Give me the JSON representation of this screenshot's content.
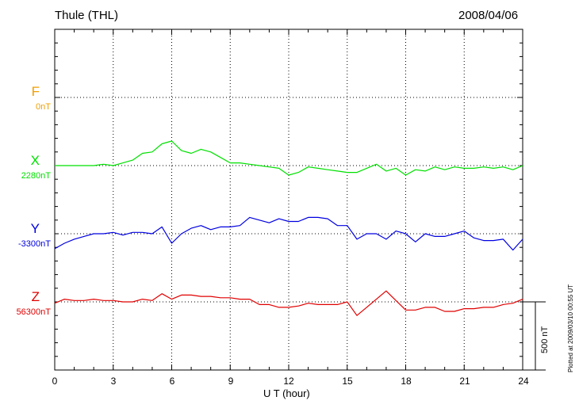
{
  "header": {
    "station": "Thule (THL)",
    "date": "2008/04/06"
  },
  "plot_note": "Plotted at 2009/03/10 00:55 UT",
  "scale_bar_label": "500 nT",
  "chart_data": {
    "type": "line",
    "xlabel": "U T (hour)",
    "xlim": [
      0,
      24
    ],
    "xticks": [
      "0",
      "3",
      "6",
      "9",
      "12",
      "15",
      "18",
      "21",
      "24"
    ],
    "ylabel": "",
    "scale_bar_nT": 500,
    "grid": true,
    "series": [
      {
        "name": "F",
        "baseline_label": "0nT",
        "color": "#f0a000",
        "x": [],
        "deviation_nT": []
      },
      {
        "name": "X",
        "baseline_label": "2280nT",
        "color": "#00e000",
        "x": [
          0,
          0.5,
          1,
          1.5,
          2,
          2.5,
          3,
          3.5,
          4,
          4.5,
          5,
          5.5,
          6,
          6.5,
          7,
          7.5,
          8,
          8.5,
          9,
          9.5,
          10,
          10.5,
          11,
          11.5,
          12,
          12.5,
          13,
          13.5,
          14,
          14.5,
          15,
          15.5,
          16,
          16.5,
          17,
          17.5,
          18,
          18.5,
          19,
          19.5,
          20,
          20.5,
          21,
          21.5,
          22,
          22.5,
          23,
          23.5,
          24
        ],
        "deviation_nT": [
          0,
          0,
          0,
          0,
          0,
          10,
          0,
          20,
          40,
          90,
          100,
          160,
          180,
          110,
          90,
          120,
          100,
          60,
          20,
          20,
          10,
          0,
          -10,
          -20,
          -70,
          -50,
          -10,
          -20,
          -30,
          -40,
          -50,
          -50,
          -20,
          10,
          -40,
          -20,
          -70,
          -30,
          -40,
          -10,
          -30,
          -10,
          -20,
          -20,
          -10,
          -20,
          -10,
          -30,
          0
        ]
      },
      {
        "name": "Y",
        "baseline_label": "-3300nT",
        "color": "#0000e0",
        "x": [
          0,
          0.5,
          1,
          1.5,
          2,
          2.5,
          3,
          3.5,
          4,
          4.5,
          5,
          5.5,
          6,
          6.5,
          7,
          7.5,
          8,
          8.5,
          9,
          9.5,
          10,
          10.5,
          11,
          11.5,
          12,
          12.5,
          13,
          13.5,
          14,
          14.5,
          15,
          15.5,
          16,
          16.5,
          17,
          17.5,
          18,
          18.5,
          19,
          19.5,
          20,
          20.5,
          21,
          21.5,
          22,
          22.5,
          23,
          23.5,
          24
        ],
        "deviation_nT": [
          -110,
          -70,
          -40,
          -20,
          0,
          0,
          10,
          -10,
          10,
          10,
          0,
          50,
          -70,
          0,
          40,
          60,
          30,
          50,
          50,
          60,
          120,
          100,
          80,
          110,
          90,
          90,
          120,
          120,
          110,
          60,
          60,
          -40,
          0,
          0,
          -40,
          20,
          0,
          -60,
          0,
          -20,
          -20,
          0,
          20,
          -30,
          -50,
          -50,
          -40,
          -120,
          -40
        ]
      },
      {
        "name": "Z",
        "baseline_label": "56300nT",
        "color": "#e00000",
        "x": [
          0,
          0.5,
          1,
          1.5,
          2,
          2.5,
          3,
          3.5,
          4,
          4.5,
          5,
          5.5,
          6,
          6.5,
          7,
          7.5,
          8,
          8.5,
          9,
          9.5,
          10,
          10.5,
          11,
          11.5,
          12,
          12.5,
          13,
          13.5,
          14,
          14.5,
          15,
          15.5,
          16,
          16.5,
          17,
          17.5,
          18,
          18.5,
          19,
          19.5,
          20,
          20.5,
          21,
          21.5,
          22,
          22.5,
          23,
          23.5,
          24
        ],
        "deviation_nT": [
          -10,
          20,
          10,
          10,
          20,
          10,
          10,
          0,
          0,
          20,
          10,
          60,
          20,
          50,
          50,
          40,
          40,
          30,
          30,
          20,
          20,
          -20,
          -20,
          -40,
          -40,
          -30,
          -10,
          -20,
          -20,
          -20,
          0,
          -100,
          -40,
          20,
          80,
          10,
          -60,
          -60,
          -40,
          -40,
          -70,
          -70,
          -50,
          -50,
          -40,
          -40,
          -20,
          -10,
          20
        ]
      }
    ]
  }
}
